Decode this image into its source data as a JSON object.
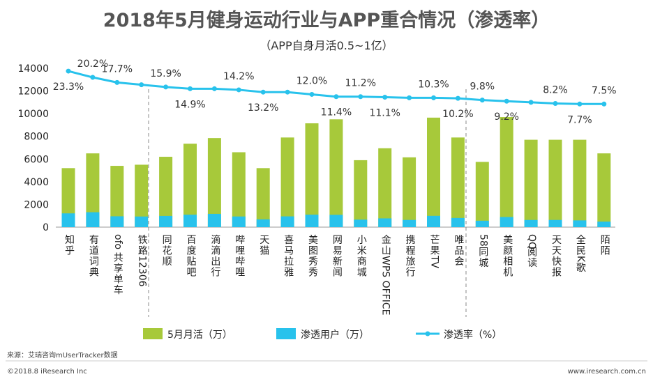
{
  "chart_data": {
    "type": "bar",
    "title": "2018年5月健身运动行业与APP重合情况（渗透率）",
    "subtitle": "（APP自身月活0.5~1亿）",
    "categories": [
      "知乎",
      "有道词典",
      "ofo共享单车",
      "铁路12306",
      "同花顺",
      "百度贴吧",
      "滴滴出行",
      "哔哩哔哩",
      "天猫",
      "喜马拉雅",
      "美图秀秀",
      "网易新闻",
      "小米商城",
      "金山WPS OFFICE",
      "携程旅行",
      "芒果TV",
      "唯品会",
      "58同城",
      "美颜相机",
      "QQ阅读",
      "天天快报",
      "全民K歌",
      "陌陌"
    ],
    "series": [
      {
        "name": "5月月活（万）",
        "type": "bar",
        "color": "#a7c93a",
        "values": [
          5200,
          6500,
          5400,
          5500,
          6200,
          7350,
          7850,
          6600,
          5200,
          7900,
          9150,
          9500,
          5900,
          6950,
          6150,
          9650,
          7900,
          5750,
          9700,
          7700,
          7700,
          7700,
          6500
        ]
      },
      {
        "name": "渗透用户（万）",
        "type": "bar",
        "color": "#28c2ec",
        "values": [
          1212,
          1313,
          956,
          935,
          986,
          1095,
          1170,
          937,
          686,
          948,
          1098,
          1083,
          661,
          771,
          633,
          994,
          806,
          564,
          892,
          631,
          631,
          593,
          488
        ]
      },
      {
        "name": "渗透率（%）",
        "type": "line",
        "color": "#28c2ec",
        "values": [
          13750,
          13200,
          12750,
          12550,
          12350,
          12200,
          12200,
          12100,
          11900,
          11900,
          11700,
          11500,
          11500,
          11450,
          11400,
          11400,
          11350,
          11200,
          11100,
          11000,
          10900,
          10850,
          10850
        ],
        "labels": [
          "23.3%",
          "20.2%",
          "17.7%",
          "",
          "15.9%",
          "14.9%",
          "",
          "14.2%",
          "13.2%",
          "",
          "12.0%",
          "11.4%",
          "11.2%",
          "11.1%",
          "",
          "10.3%",
          "10.2%",
          "9.8%",
          "9.2%",
          "",
          "8.2%",
          "7.7%",
          "7.5%"
        ]
      }
    ],
    "ylim": [
      0,
      14000
    ],
    "yticks": [
      0,
      2000,
      4000,
      6000,
      8000,
      10000,
      12000,
      14000
    ],
    "grid": false,
    "legend": "bottom"
  },
  "footer": {
    "source": "来源：艾瑞咨询mUserTracker数据",
    "copyright": "©2018.8 iResearch Inc",
    "website": "www.iresearch.com.cn"
  }
}
